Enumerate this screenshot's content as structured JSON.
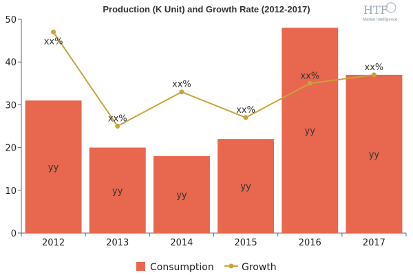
{
  "logo": {
    "brand": "HTF",
    "tagline": "Market Intelligence"
  },
  "chart_data": {
    "type": "bar",
    "title": "Production (K Unit) and Growth Rate (2012-2017)",
    "categories": [
      "2012",
      "2013",
      "2014",
      "2015",
      "2016",
      "2017"
    ],
    "ylim": [
      0,
      50
    ],
    "yticks": [
      0,
      10,
      20,
      30,
      40,
      50
    ],
    "grid": false,
    "legend_position": "bottom",
    "series": [
      {
        "name": "Consumption",
        "type": "bar",
        "color": "#e8674f",
        "values": [
          31,
          20,
          18,
          22,
          48,
          37
        ],
        "data_labels": [
          "yy",
          "yy",
          "yy",
          "yy",
          "yy",
          "yy"
        ]
      },
      {
        "name": "Growth",
        "type": "line",
        "color": "#c9a23c",
        "values": [
          47,
          25,
          33,
          27,
          35,
          37
        ],
        "data_labels": [
          "xx%",
          "xx%",
          "xx%",
          "xx%",
          "xx%",
          "xx%"
        ]
      }
    ]
  }
}
